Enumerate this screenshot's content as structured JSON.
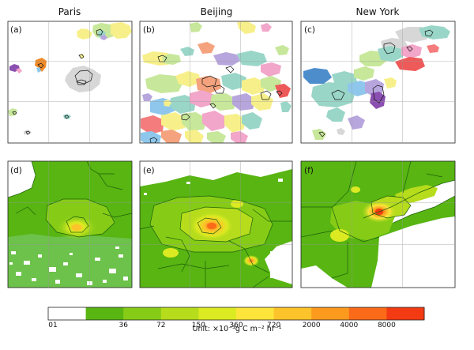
{
  "figure": {
    "city_titles": [
      "Paris",
      "Beijing",
      "New York"
    ],
    "panel_labels": [
      "(a)",
      "(b)",
      "(c)",
      "(d)",
      "(e)",
      "(f)"
    ],
    "colorbar": {
      "tick_labels": [
        "01",
        "36",
        "72",
        "150",
        "360",
        "720",
        "2000",
        "4000",
        "8000"
      ],
      "colors": [
        "#ffffff",
        "#58b512",
        "#86cc17",
        "#b6dc1c",
        "#dcea22",
        "#fde43b",
        "#fdc32a",
        "#fc9a1e",
        "#fb6a19",
        "#f33a12"
      ],
      "unit_text": "Unit: ×10⁻³g C m⁻² hr⁻¹"
    },
    "palette_top": [
      "#9ad6c8",
      "#f2a6c9",
      "#f7f08a",
      "#b7a6dd",
      "#f4a37e",
      "#8fc7ec",
      "#c7e79a",
      "#f47c7c",
      "#d7d7d7",
      "#a3d9a3",
      "#ffd480",
      "#9ab8e0"
    ],
    "accent_colors": {
      "purple": "#8a4fb0",
      "orange": "#f08a28",
      "blue": "#4d8dcc",
      "green": "#6cc24a",
      "red": "#ee5a5a",
      "gray": "#bdbdbd"
    }
  }
}
